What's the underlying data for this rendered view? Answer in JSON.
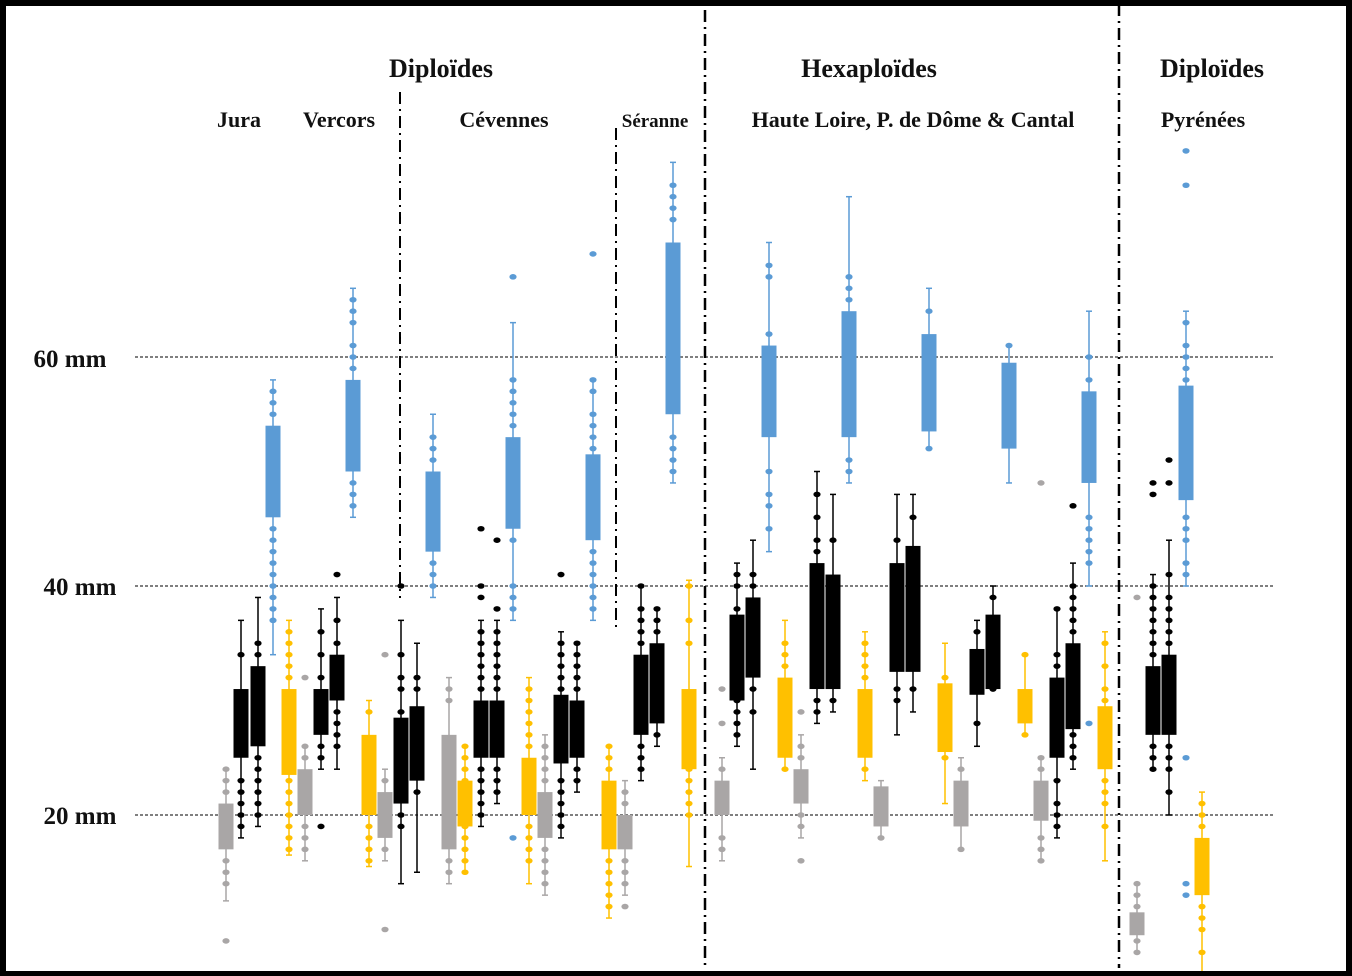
{
  "chart_data": {
    "type": "box",
    "title": "",
    "xlabel": "",
    "ylabel": "",
    "ylim": [
      6,
      77
    ],
    "grid": true,
    "yticks": [
      {
        "value": 60,
        "label": "60 mm"
      },
      {
        "value": 40,
        "label": "40 mm"
      },
      {
        "value": 20,
        "label": "20 mm"
      }
    ],
    "colors": {
      "blue": "#5b9bd5",
      "black": "#000000",
      "yellow": "#ffc000",
      "gray": "#a9a6a6"
    },
    "group_titles": [
      {
        "id": "diploides-left",
        "label": "Diploïdes"
      },
      {
        "id": "hexaploides",
        "label": "Hexaploïdes"
      },
      {
        "id": "diploides-right",
        "label": "Diploïdes"
      }
    ],
    "region_labels": [
      {
        "id": "jura",
        "label": "Jura"
      },
      {
        "id": "vercors",
        "label": "Vercors"
      },
      {
        "id": "cevennes",
        "label": "Cévennes"
      },
      {
        "id": "seranne",
        "label": "Séranne"
      },
      {
        "id": "auvergne",
        "label": "Haute Loire, P. de Dôme & Cantal"
      },
      {
        "id": "pyrenees",
        "label": "Pyrénées"
      }
    ],
    "boxes": [
      {
        "region": "Jura",
        "color": "gray",
        "low": 12.5,
        "q1": 17,
        "q3": 21,
        "high": 24,
        "points": [
          22,
          23,
          24,
          16,
          15,
          14,
          9
        ]
      },
      {
        "region": "Jura",
        "color": "black",
        "low": 18,
        "q1": 25,
        "q3": 31,
        "high": 37,
        "points": [
          20,
          21,
          22,
          23,
          27,
          28,
          29,
          34,
          19,
          26
        ]
      },
      {
        "region": "Jura",
        "color": "black",
        "low": 19,
        "q1": 26,
        "q3": 33,
        "high": 39,
        "points": [
          20,
          21,
          22,
          23,
          24,
          25,
          34,
          35
        ]
      },
      {
        "region": "Jura",
        "color": "blue",
        "low": 34,
        "q1": 46,
        "q3": 54,
        "high": 58,
        "points": [
          37,
          38,
          39,
          40,
          41,
          42,
          43,
          44,
          45,
          55,
          56,
          57
        ]
      },
      {
        "region": "Jura",
        "color": "yellow",
        "low": 16.5,
        "q1": 23.5,
        "q3": 31,
        "high": 37,
        "points": [
          17,
          18,
          19,
          20,
          21,
          22,
          23,
          32,
          33,
          34,
          35,
          36
        ]
      },
      {
        "region": "Jura",
        "color": "gray",
        "low": 16,
        "q1": 20,
        "q3": 24,
        "high": 26,
        "points": [
          17,
          18,
          19,
          25,
          26,
          32
        ]
      },
      {
        "region": "Vercors",
        "color": "black",
        "low": 24,
        "q1": 27,
        "q3": 31,
        "high": 38,
        "points": [
          25,
          26,
          32,
          34,
          19,
          36
        ]
      },
      {
        "region": "Vercors",
        "color": "black",
        "low": 24,
        "q1": 30,
        "q3": 34,
        "high": 39,
        "points": [
          26,
          27,
          28,
          29,
          35,
          37,
          41
        ]
      },
      {
        "region": "Vercors",
        "color": "blue",
        "low": 46,
        "q1": 50,
        "q3": 58,
        "high": 66,
        "points": [
          47,
          48,
          49,
          59,
          60,
          61,
          63,
          64,
          65
        ]
      },
      {
        "region": "Vercors",
        "color": "yellow",
        "low": 15.5,
        "q1": 20,
        "q3": 27,
        "high": 30,
        "points": [
          16,
          17,
          18,
          19,
          29
        ]
      },
      {
        "region": "Vercors",
        "color": "gray",
        "low": 16,
        "q1": 18,
        "q3": 22,
        "high": 24,
        "points": [
          17,
          23,
          10,
          34
        ]
      },
      {
        "region": "Cévennes",
        "color": "black",
        "low": 14,
        "q1": 21,
        "q3": 28.5,
        "high": 37,
        "points": [
          19,
          20,
          22,
          29,
          31,
          32,
          34,
          40
        ]
      },
      {
        "region": "Cévennes",
        "color": "black",
        "low": 15,
        "q1": 23,
        "q3": 29.5,
        "high": 35,
        "points": [
          22,
          24,
          31,
          32
        ]
      },
      {
        "region": "Cévennes",
        "color": "blue",
        "low": 39,
        "q1": 43,
        "q3": 50,
        "high": 55,
        "points": [
          40,
          41,
          42,
          51,
          52,
          53
        ]
      },
      {
        "region": "Cévennes",
        "color": "gray",
        "low": 14,
        "q1": 17,
        "q3": 27,
        "high": 32,
        "points": [
          16,
          15,
          30,
          31
        ]
      },
      {
        "region": "Cévennes",
        "color": "yellow",
        "low": 15,
        "q1": 19,
        "q3": 23,
        "high": 26,
        "points": [
          15,
          16,
          17,
          18,
          19,
          20,
          21,
          22,
          23,
          24,
          25,
          26
        ]
      },
      {
        "region": "Cévennes",
        "color": "black",
        "low": 19,
        "q1": 25,
        "q3": 30,
        "high": 37,
        "points": [
          20,
          21,
          22,
          23,
          24,
          31,
          32,
          33,
          34,
          35,
          36,
          40,
          39,
          45
        ]
      },
      {
        "region": "Cévennes",
        "color": "black",
        "low": 21,
        "q1": 25,
        "q3": 30,
        "high": 37,
        "points": [
          22,
          23,
          24,
          31,
          32,
          33,
          34,
          35,
          36,
          38,
          44
        ]
      },
      {
        "region": "Cévennes",
        "color": "blue",
        "low": 37,
        "q1": 45,
        "q3": 53,
        "high": 63,
        "points": [
          38,
          39,
          40,
          44,
          54,
          55,
          56,
          57,
          58,
          67,
          18
        ]
      },
      {
        "region": "Cévennes",
        "color": "yellow",
        "low": 14,
        "q1": 20,
        "q3": 25,
        "high": 32,
        "points": [
          16,
          17,
          18,
          19,
          26,
          27,
          28,
          29,
          30,
          31
        ]
      },
      {
        "region": "Cévennes",
        "color": "gray",
        "low": 13,
        "q1": 18,
        "q3": 22,
        "high": 27,
        "points": [
          14,
          15,
          16,
          17,
          23,
          24,
          25,
          26
        ]
      },
      {
        "region": "Cévennes",
        "color": "black",
        "low": 18,
        "q1": 24.5,
        "q3": 30.5,
        "high": 36,
        "points": [
          19,
          20,
          21,
          22,
          23,
          31,
          32,
          33,
          34,
          35,
          41
        ]
      },
      {
        "region": "Cévennes",
        "color": "black",
        "low": 22,
        "q1": 25,
        "q3": 30,
        "high": 35,
        "points": [
          23,
          24,
          31,
          32,
          33,
          34,
          35
        ]
      },
      {
        "region": "Cévennes",
        "color": "blue",
        "low": 37,
        "q1": 44,
        "q3": 51.5,
        "high": 58,
        "points": [
          38,
          39,
          40,
          41,
          42,
          43,
          52,
          53,
          54,
          55,
          57,
          58,
          69
        ]
      },
      {
        "region": "Séranne",
        "color": "yellow",
        "low": 11,
        "q1": 17,
        "q3": 23,
        "high": 26,
        "points": [
          12,
          13,
          14,
          15,
          16,
          24,
          25,
          26
        ]
      },
      {
        "region": "Séranne",
        "color": "gray",
        "low": 13,
        "q1": 17,
        "q3": 20,
        "high": 23,
        "points": [
          12,
          14,
          15,
          16,
          21,
          22
        ]
      },
      {
        "region": "Séranne",
        "color": "black",
        "low": 23,
        "q1": 27,
        "q3": 34,
        "high": 40,
        "points": [
          24,
          25,
          26,
          35,
          36,
          37,
          38,
          40
        ]
      },
      {
        "region": "Séranne",
        "color": "black",
        "low": 26,
        "q1": 28,
        "q3": 35,
        "high": 38,
        "points": [
          27,
          36,
          37,
          38
        ]
      },
      {
        "region": "Séranne",
        "color": "blue",
        "low": 49,
        "q1": 55,
        "q3": 70,
        "high": 77,
        "points": [
          50,
          51,
          52,
          53,
          72,
          73,
          74,
          75
        ]
      },
      {
        "region": "Séranne",
        "color": "yellow",
        "low": 15.5,
        "q1": 24,
        "q3": 31,
        "high": 40.5,
        "points": [
          20,
          21,
          22,
          23,
          24,
          25,
          26,
          35,
          37,
          40
        ]
      },
      {
        "region": "Haute Loire, P. de Dôme & Cantal",
        "color": "gray",
        "low": 16,
        "q1": 20,
        "q3": 23,
        "high": 25,
        "points": [
          17,
          18,
          24,
          28,
          31
        ]
      },
      {
        "region": "Haute Loire, P. de Dôme & Cantal",
        "color": "black",
        "low": 26,
        "q1": 30,
        "q3": 37.5,
        "high": 42,
        "points": [
          27,
          28,
          29,
          30,
          38,
          40,
          41
        ]
      },
      {
        "region": "Haute Loire, P. de Dôme & Cantal",
        "color": "black",
        "low": 24,
        "q1": 32,
        "q3": 39,
        "high": 44,
        "points": [
          29,
          31,
          33,
          40,
          41
        ]
      },
      {
        "region": "Haute Loire, P. de Dôme & Cantal",
        "color": "blue",
        "low": 43,
        "q1": 53,
        "q3": 61,
        "high": 70,
        "points": [
          45,
          47,
          48,
          50,
          62,
          67,
          68
        ]
      },
      {
        "region": "Haute Loire, P. de Dôme & Cantal",
        "color": "yellow",
        "low": 24,
        "q1": 25,
        "q3": 32,
        "high": 37,
        "points": [
          24,
          33,
          34,
          35
        ]
      },
      {
        "region": "Haute Loire, P. de Dôme & Cantal",
        "color": "gray",
        "low": 18,
        "q1": 21,
        "q3": 24,
        "high": 27,
        "points": [
          19,
          20,
          25,
          26,
          16,
          29
        ]
      },
      {
        "region": "Haute Loire, P. de Dôme & Cantal",
        "color": "black",
        "low": 28,
        "q1": 31,
        "q3": 42,
        "high": 50,
        "points": [
          29,
          30,
          43,
          44,
          46,
          48
        ]
      },
      {
        "region": "Haute Loire, P. de Dôme & Cantal",
        "color": "black",
        "low": 29,
        "q1": 31,
        "q3": 41,
        "high": 48,
        "points": [
          30,
          44
        ]
      },
      {
        "region": "Haute Loire, P. de Dôme & Cantal",
        "color": "blue",
        "low": 49,
        "q1": 53,
        "q3": 64,
        "high": 74,
        "points": [
          50,
          51,
          65,
          66,
          67
        ]
      },
      {
        "region": "Haute Loire, P. de Dôme & Cantal",
        "color": "yellow",
        "low": 23,
        "q1": 25,
        "q3": 31,
        "high": 36,
        "points": [
          24,
          32,
          33,
          34,
          35
        ]
      },
      {
        "region": "Haute Loire, P. de Dôme & Cantal",
        "color": "gray",
        "low": 18,
        "q1": 19,
        "q3": 22.5,
        "high": 23,
        "points": [
          18
        ]
      },
      {
        "region": "Haute Loire, P. de Dôme & Cantal",
        "color": "black",
        "low": 27,
        "q1": 32.5,
        "q3": 42,
        "high": 48,
        "points": [
          30,
          31,
          44
        ]
      },
      {
        "region": "Haute Loire, P. de Dôme & Cantal",
        "color": "black",
        "low": 29,
        "q1": 32.5,
        "q3": 43.5,
        "high": 48,
        "points": [
          31,
          46
        ]
      },
      {
        "region": "Haute Loire, P. de Dôme & Cantal",
        "color": "blue",
        "low": 52,
        "q1": 53.5,
        "q3": 62,
        "high": 66,
        "points": [
          52,
          64
        ]
      },
      {
        "region": "Haute Loire, P. de Dôme & Cantal",
        "color": "yellow",
        "low": 21,
        "q1": 25.5,
        "q3": 31.5,
        "high": 35,
        "points": [
          25,
          32
        ]
      },
      {
        "region": "Haute Loire, P. de Dôme & Cantal",
        "color": "gray",
        "low": 17,
        "q1": 19,
        "q3": 23,
        "high": 25,
        "points": [
          17,
          24
        ]
      },
      {
        "region": "Haute Loire, P. de Dôme & Cantal",
        "color": "black",
        "low": 26,
        "q1": 30.5,
        "q3": 34.5,
        "high": 37,
        "points": [
          28,
          36
        ]
      },
      {
        "region": "Haute Loire, P. de Dôme & Cantal",
        "color": "black",
        "low": 31,
        "q1": 31,
        "q3": 37.5,
        "high": 40,
        "points": [
          31,
          39
        ]
      },
      {
        "region": "Haute Loire, P. de Dôme & Cantal",
        "color": "blue",
        "low": 49,
        "q1": 52,
        "q3": 59.5,
        "high": 61,
        "points": [
          61
        ]
      },
      {
        "region": "Haute Loire, P. de Dôme & Cantal",
        "color": "yellow",
        "low": 27,
        "q1": 28,
        "q3": 31,
        "high": 34,
        "points": [
          27,
          34
        ]
      },
      {
        "region": "Haute Loire, P. de Dôme & Cantal",
        "color": "gray",
        "low": 16,
        "q1": 19.5,
        "q3": 23,
        "high": 25,
        "points": [
          16,
          17,
          18,
          24,
          25,
          49
        ]
      },
      {
        "region": "Haute Loire, P. de Dôme & Cantal",
        "color": "black",
        "low": 18,
        "q1": 25,
        "q3": 32,
        "high": 38,
        "points": [
          19,
          20,
          21,
          23,
          26,
          33,
          34,
          38
        ]
      },
      {
        "region": "Haute Loire, P. de Dôme & Cantal",
        "color": "black",
        "low": 24,
        "q1": 27.5,
        "q3": 35,
        "high": 42,
        "points": [
          25,
          26,
          27,
          36,
          37,
          38,
          39,
          40,
          47
        ]
      },
      {
        "region": "Haute Loire, P. de Dôme & Cantal",
        "color": "blue",
        "low": 40,
        "q1": 49,
        "q3": 57,
        "high": 64,
        "points": [
          42,
          43,
          44,
          45,
          46,
          58,
          60,
          28
        ]
      },
      {
        "region": "Haute Loire, P. de Dôme & Cantal",
        "color": "yellow",
        "low": 16,
        "q1": 24,
        "q3": 29.5,
        "high": 36,
        "points": [
          19,
          21,
          22,
          23,
          30,
          31,
          33,
          35
        ]
      },
      {
        "region": "Pyrénées",
        "color": "gray",
        "low": 8,
        "q1": 9.5,
        "q3": 11.5,
        "high": 14,
        "points": [
          8,
          9,
          12,
          13,
          14,
          39
        ]
      },
      {
        "region": "Pyrénées",
        "color": "black",
        "low": 24,
        "q1": 27,
        "q3": 33,
        "high": 41,
        "points": [
          24,
          25,
          26,
          34,
          35,
          36,
          37,
          38,
          39,
          40,
          48,
          49
        ]
      },
      {
        "region": "Pyrénées",
        "color": "black",
        "low": 20,
        "q1": 27,
        "q3": 34,
        "high": 44,
        "points": [
          22,
          24,
          25,
          26,
          35,
          36,
          37,
          38,
          39,
          41,
          49,
          51
        ]
      },
      {
        "region": "Pyrénées",
        "color": "blue",
        "low": 40,
        "q1": 47.5,
        "q3": 57.5,
        "high": 64,
        "points": [
          41,
          42,
          44,
          45,
          46,
          58,
          59,
          60,
          61,
          63,
          75,
          78,
          25,
          13,
          14
        ]
      },
      {
        "region": "Pyrénées",
        "color": "yellow",
        "low": 6,
        "q1": 13,
        "q3": 18,
        "high": 22,
        "points": [
          8,
          10,
          11,
          12,
          19,
          20,
          21
        ]
      }
    ]
  }
}
